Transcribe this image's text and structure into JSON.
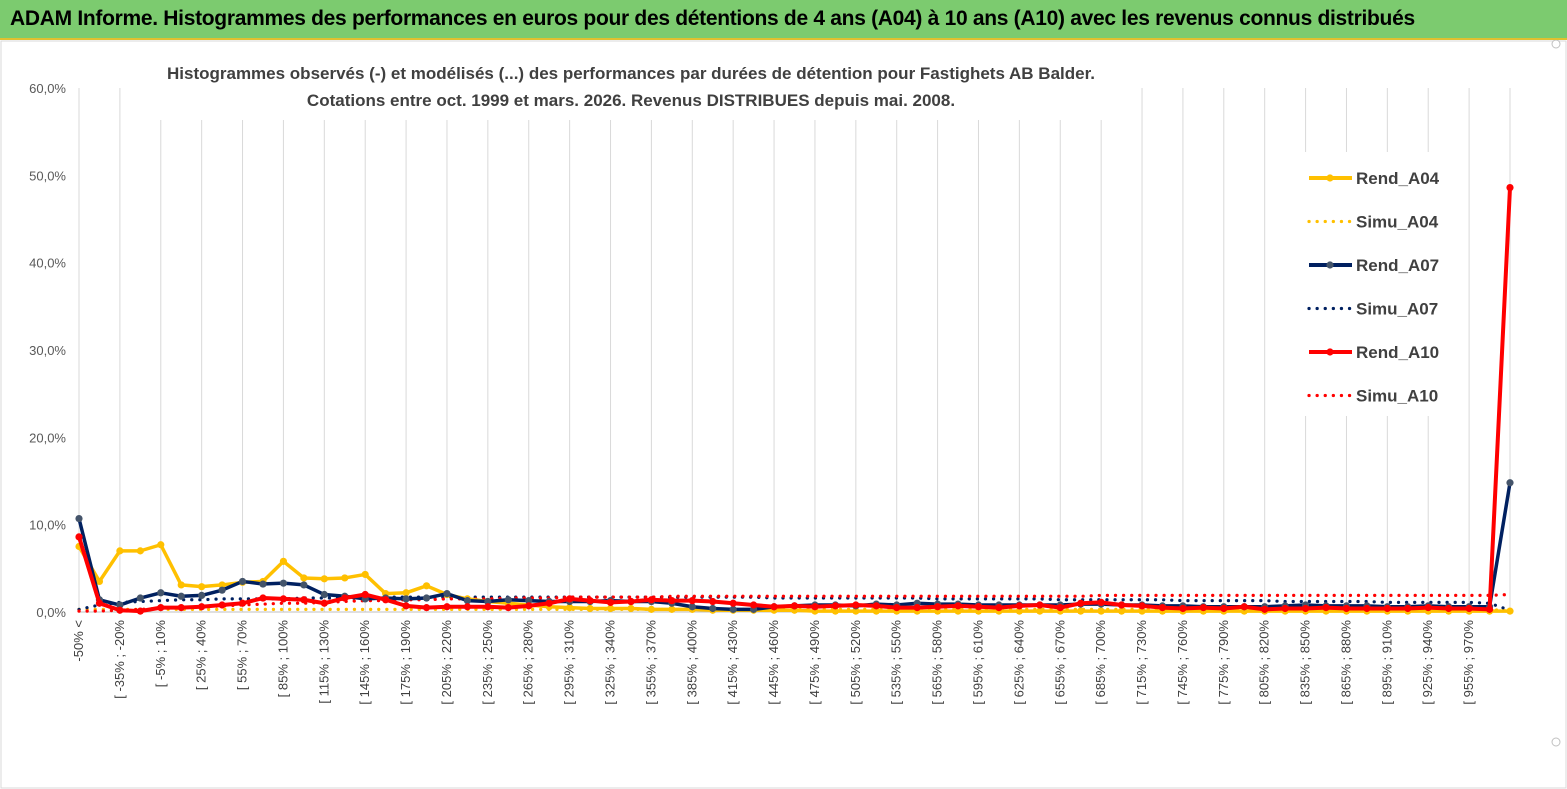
{
  "banner": {
    "title": "ADAM Informe. Histogrammes des performances en euros pour des détentions de 4 ans (A04) à 10 ans (A10) avec les revenus connus distribués"
  },
  "colors": {
    "banner_bg": "#7ccb6f",
    "A04": "#ffc000",
    "A07": "#002060",
    "A07_marker": "#44546a",
    "A10": "#ff0000",
    "grid": "#d9d9d9"
  },
  "chart_data": {
    "type": "line",
    "title_lines": [
      "Histogrammes observés (-) et modélisés (...) des performances par durées de détention pour Fastighets AB Balder.",
      "Cotations entre oct. 1999 et mars. 2026. Revenus DISTRIBUES depuis mai. 2008."
    ],
    "xlabel": "",
    "ylabel": "",
    "ylim": [
      0,
      60
    ],
    "y_ticks": [
      "0,0%",
      "10,0%",
      "20,0%",
      "30,0%",
      "40,0%",
      "50,0%",
      "60,0%"
    ],
    "grid": "vertical",
    "legend_position": "right",
    "x_labels_shown": [
      "-50% <",
      "[ -35% ; -20%",
      "[ -5% ; 10%",
      "[ 25% ; 40%",
      "[ 55% ; 70%",
      "[ 85% ; 100%",
      "[ 115% ; 130%",
      "[ 145% ; 160%",
      "[ 175% ; 190%",
      "[ 205% ; 220%",
      "[ 235% ; 250%",
      "[ 265% ; 280%",
      "[ 295% ; 310%",
      "[ 325% ; 340%",
      "[ 355% ; 370%",
      "[ 385% ; 400%",
      "[ 415% ; 430%",
      "[ 445% ; 460%",
      "[ 475% ; 490%",
      "[ 505% ; 520%",
      "[ 535% ; 550%",
      "[ 565% ; 580%",
      "[ 595% ; 610%",
      "[ 625% ; 640%",
      "[ 655% ; 670%",
      "[ 685% ; 700%",
      "[ 715% ; 730%",
      "[ 745% ; 760%",
      "[ 775% ; 790%",
      "[ 805% ; 820%",
      "[ 835% ; 850%",
      "[ 865% ; 880%",
      "[ 895% ; 910%",
      "[ 925% ; 940%",
      "[ 955% ; 970%"
    ],
    "series": [
      {
        "name": "Rend_A04",
        "style": "solid",
        "values": [
          7.5,
          3.5,
          7.0,
          7.0,
          7.7,
          3.1,
          2.9,
          3.1,
          3.4,
          3.5,
          5.8,
          3.9,
          3.8,
          3.9,
          4.3,
          2.1,
          2.2,
          3.0,
          2.0,
          1.5,
          1.2,
          1.0,
          0.8,
          0.6,
          0.5,
          0.4,
          0.4,
          0.4,
          0.3,
          0.3,
          0.3,
          0.2,
          0.2,
          0.2,
          0.2,
          0.2,
          0.1,
          0.1,
          0.1,
          0.1,
          0.1,
          0.1,
          0.1,
          0.1,
          0.1,
          0.1,
          0.1,
          0.1,
          0.1,
          0.1,
          0.1,
          0.1,
          0.1,
          0.1,
          0.1,
          0.1,
          0.1,
          0.1,
          0.1,
          0.1,
          0.1,
          0.1,
          0.1,
          0.1,
          0.1,
          0.1,
          0.1,
          0.1,
          0.1,
          0.1,
          0.1
        ]
      },
      {
        "name": "Simu_A04",
        "style": "dotted",
        "values": [
          0.3,
          0.3,
          0.3,
          0.3,
          0.3,
          0.3,
          0.3,
          0.3,
          0.3,
          0.3,
          0.3,
          0.3,
          0.3,
          0.3,
          0.3,
          0.3,
          0.3,
          0.3,
          0.3,
          0.3,
          0.3,
          0.3,
          0.3,
          0.3,
          0.3,
          0.3,
          0.3,
          0.3,
          0.3,
          0.3,
          0.3,
          0.3,
          0.3,
          0.3,
          0.3,
          0.3,
          0.3,
          0.3,
          0.3,
          0.3,
          0.3,
          0.3,
          0.3,
          0.3,
          0.3,
          0.3,
          0.3,
          0.3,
          0.3,
          0.3,
          0.3,
          0.3,
          0.3,
          0.3,
          0.3,
          0.3,
          0.3,
          0.3,
          0.3,
          0.3,
          0.3,
          0.3,
          0.3,
          0.3,
          0.3,
          0.3,
          0.3,
          0.3,
          0.3,
          0.3,
          0.1
        ]
      },
      {
        "name": "Rend_A07",
        "style": "solid",
        "values": [
          10.7,
          1.4,
          0.8,
          1.6,
          2.2,
          1.8,
          1.9,
          2.5,
          3.5,
          3.2,
          3.3,
          3.1,
          2.0,
          1.8,
          1.5,
          1.6,
          1.5,
          1.6,
          2.1,
          1.3,
          1.2,
          1.4,
          1.3,
          1.2,
          1.2,
          1.2,
          1.3,
          1.2,
          1.2,
          1.0,
          0.6,
          0.4,
          0.3,
          0.3,
          0.6,
          0.7,
          0.8,
          0.8,
          0.7,
          0.9,
          0.8,
          1.0,
          0.9,
          0.9,
          0.8,
          0.8,
          0.8,
          0.8,
          0.8,
          0.9,
          0.9,
          0.8,
          0.8,
          0.7,
          0.7,
          0.6,
          0.6,
          0.6,
          0.6,
          0.7,
          0.8,
          0.7,
          0.7,
          0.7,
          0.6,
          0.6,
          0.7,
          0.6,
          0.6,
          0.6,
          14.8
        ]
      },
      {
        "name": "Simu_A07",
        "style": "dotted",
        "values": [
          0.3,
          0.8,
          1.1,
          1.2,
          1.3,
          1.4,
          1.4,
          1.5,
          1.5,
          1.5,
          1.5,
          1.6,
          1.6,
          1.6,
          1.6,
          1.7,
          1.7,
          1.7,
          1.7,
          1.7,
          1.7,
          1.7,
          1.7,
          1.7,
          1.7,
          1.7,
          1.7,
          1.7,
          1.7,
          1.7,
          1.7,
          1.7,
          1.7,
          1.7,
          1.6,
          1.6,
          1.6,
          1.6,
          1.6,
          1.6,
          1.6,
          1.6,
          1.5,
          1.5,
          1.5,
          1.5,
          1.5,
          1.5,
          1.4,
          1.4,
          1.4,
          1.4,
          1.4,
          1.4,
          1.3,
          1.3,
          1.3,
          1.3,
          1.3,
          1.2,
          1.2,
          1.2,
          1.2,
          1.2,
          1.1,
          1.1,
          1.1,
          1.1,
          1.1,
          1.0,
          0.2
        ]
      },
      {
        "name": "Rend_A10",
        "style": "solid",
        "values": [
          8.6,
          1.0,
          0.2,
          0.1,
          0.5,
          0.5,
          0.6,
          0.8,
          1.0,
          1.6,
          1.5,
          1.4,
          1.0,
          1.6,
          2.0,
          1.4,
          0.7,
          0.5,
          0.6,
          0.6,
          0.6,
          0.5,
          0.7,
          1.0,
          1.5,
          1.3,
          1.1,
          1.2,
          1.4,
          1.3,
          1.3,
          1.2,
          1.0,
          0.8,
          0.6,
          0.7,
          0.6,
          0.7,
          0.8,
          0.7,
          0.5,
          0.5,
          0.6,
          0.7,
          0.6,
          0.5,
          0.7,
          0.8,
          0.5,
          1.0,
          1.1,
          0.8,
          0.7,
          0.5,
          0.4,
          0.5,
          0.4,
          0.6,
          0.3,
          0.4,
          0.4,
          0.5,
          0.4,
          0.4,
          0.4,
          0.4,
          0.5,
          0.4,
          0.4,
          0.3,
          48.6
        ]
      },
      {
        "name": "Simu_A10",
        "style": "dotted",
        "values": [
          0.1,
          0.1,
          0.2,
          0.3,
          0.4,
          0.5,
          0.6,
          0.7,
          0.8,
          0.9,
          1.0,
          1.0,
          1.1,
          1.2,
          1.3,
          1.3,
          1.4,
          1.4,
          1.5,
          1.5,
          1.5,
          1.6,
          1.6,
          1.6,
          1.7,
          1.7,
          1.7,
          1.7,
          1.7,
          1.8,
          1.8,
          1.8,
          1.8,
          1.8,
          1.8,
          1.8,
          1.8,
          1.8,
          1.8,
          1.8,
          1.8,
          1.8,
          1.8,
          1.8,
          1.8,
          1.8,
          1.8,
          1.8,
          1.8,
          1.8,
          1.9,
          1.9,
          1.9,
          1.9,
          1.9,
          1.9,
          1.9,
          1.9,
          1.9,
          1.9,
          1.9,
          1.9,
          1.9,
          1.9,
          1.9,
          1.9,
          1.9,
          1.9,
          1.9,
          1.9,
          2.0
        ]
      }
    ]
  }
}
